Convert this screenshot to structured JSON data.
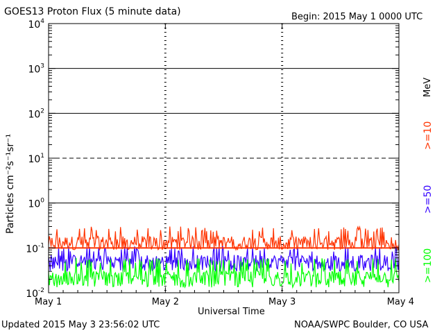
{
  "header": {
    "title": "GOES13 Proton Flux (5 minute data)",
    "begin": "Begin: 2015 May 1 0000 UTC"
  },
  "footer": {
    "updated": "Updated 2015 May  3 23:56:02 UTC",
    "credit": "NOAA/SWPC Boulder, CO USA"
  },
  "legend": {
    "unit": "MeV",
    "items": [
      {
        "label": ">=10",
        "color": "#ff3300"
      },
      {
        "label": ">=50",
        "color": "#3300ff"
      },
      {
        "label": ">=100",
        "color": "#00ff00"
      }
    ]
  },
  "chart_data": {
    "type": "line",
    "title": "GOES13 Proton Flux (5 minute data)",
    "xlabel": "Universal Time",
    "ylabel": "Particles cm⁻²s⁻¹sr⁻¹",
    "yscale": "log",
    "ylim": [
      0.01,
      10000
    ],
    "xlim": [
      0,
      3
    ],
    "x_ticks": [
      {
        "value": 0,
        "label": "May 1"
      },
      {
        "value": 1,
        "label": "May 2"
      },
      {
        "value": 2,
        "label": "May 3"
      },
      {
        "value": 3,
        "label": "May 4"
      }
    ],
    "y_ticks": [
      {
        "value": 0.01,
        "base": "10",
        "exp": "-2"
      },
      {
        "value": 0.1,
        "base": "10",
        "exp": "-1"
      },
      {
        "value": 1,
        "base": "10",
        "exp": "0"
      },
      {
        "value": 10,
        "base": "10",
        "exp": "1"
      },
      {
        "value": 100,
        "base": "10",
        "exp": "2"
      },
      {
        "value": 1000,
        "base": "10",
        "exp": "3"
      },
      {
        "value": 10000,
        "base": "10",
        "exp": "4"
      }
    ],
    "solid_gridlines": [
      1,
      100,
      1000
    ],
    "dashed_gridlines": [
      10
    ],
    "threshold_line": 0.1,
    "series": [
      {
        "name": ">=10 MeV",
        "color": "#ff3300",
        "base": 0.13,
        "spread_low": 0.09,
        "spread_high": 0.3
      },
      {
        "name": ">=50 MeV",
        "color": "#3300ff",
        "base": 0.05,
        "spread_low": 0.03,
        "spread_high": 0.11
      },
      {
        "name": ">=100 MeV",
        "color": "#00ff00",
        "base": 0.022,
        "spread_low": 0.013,
        "spread_high": 0.06
      }
    ]
  }
}
